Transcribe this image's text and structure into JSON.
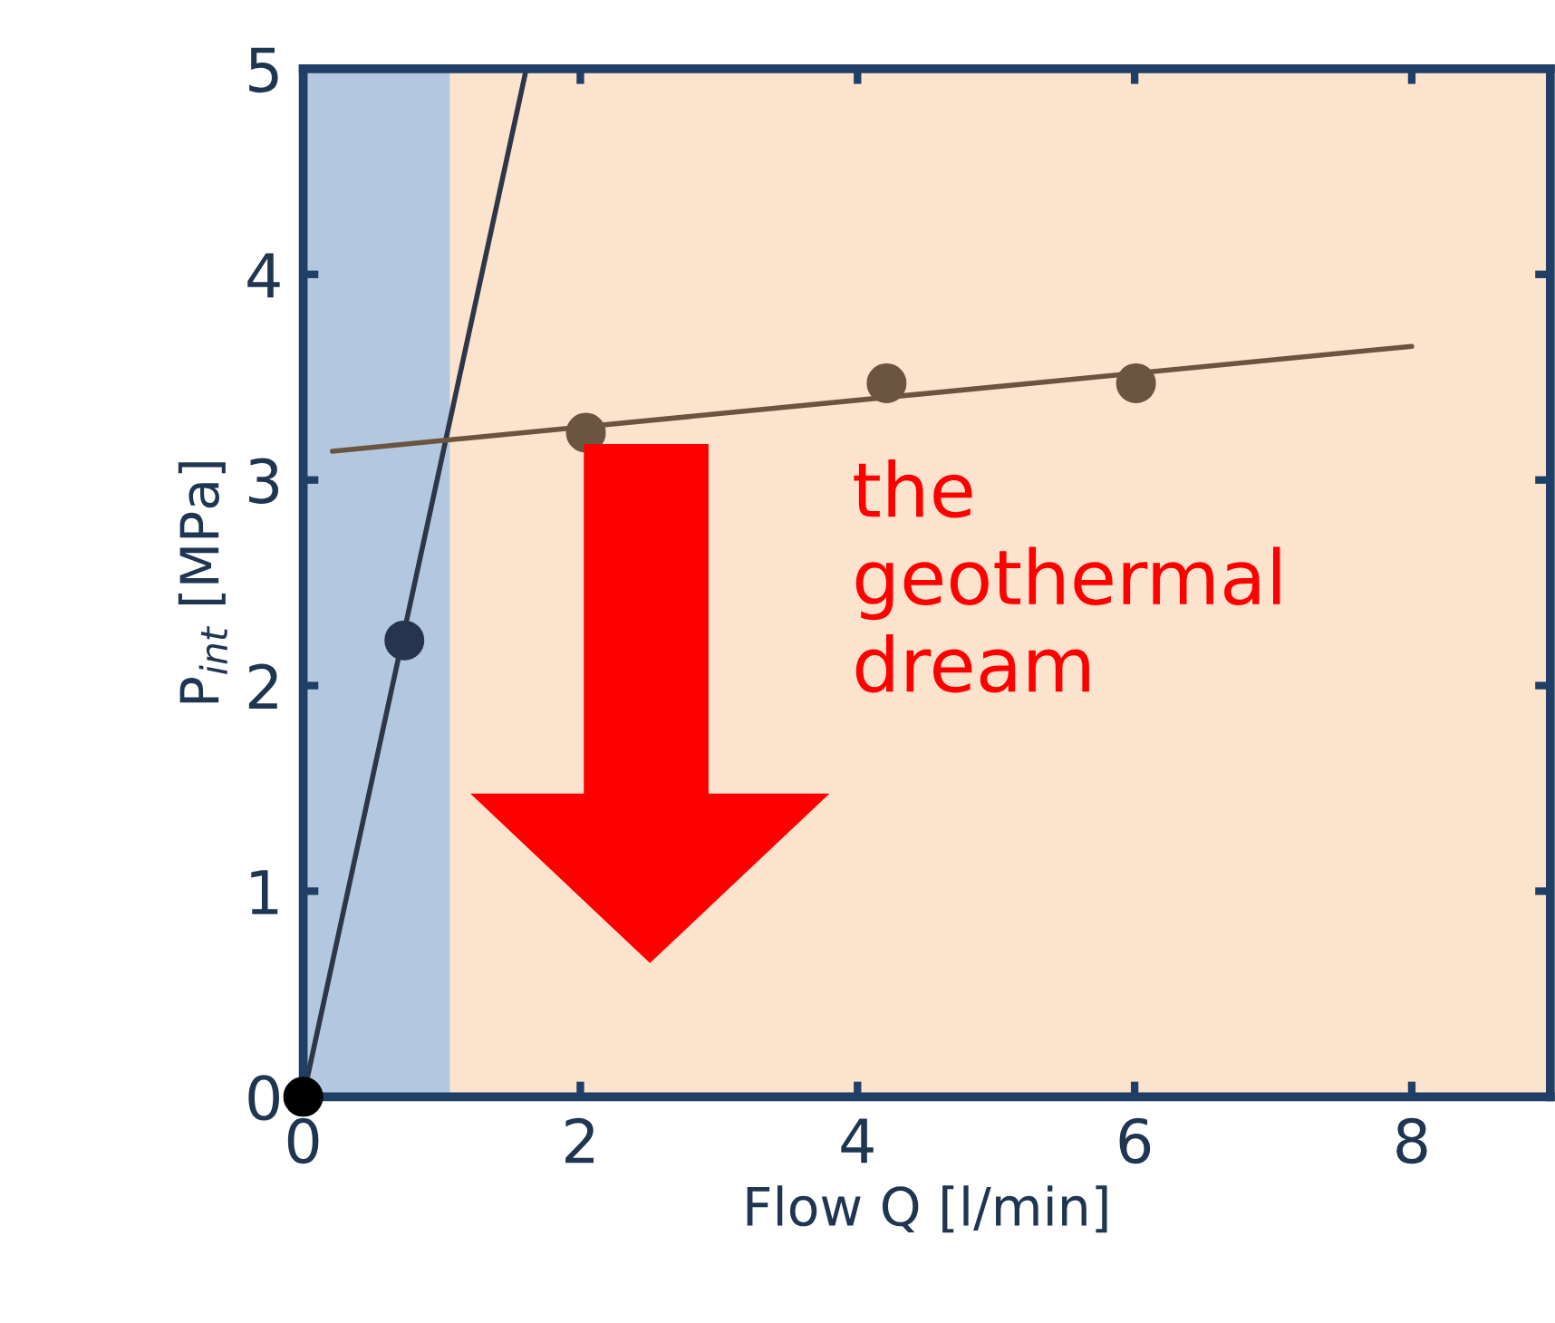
{
  "chart_data": {
    "type": "scatter",
    "xlabel": "Flow Q [l/min]",
    "ylabel": "P$_{int}$ [MPa]",
    "xlim": [
      0,
      9
    ],
    "ylim": [
      0,
      5
    ],
    "xticks": [
      0,
      2,
      4,
      6,
      8
    ],
    "yticks": [
      0,
      1,
      2,
      3,
      4,
      5
    ],
    "grid": false,
    "marker": "circle",
    "bands": [
      {
        "axis": "x",
        "from": 0,
        "to": 1.06,
        "color": "#b3c8e0"
      },
      {
        "axis": "x",
        "from": 1.06,
        "to": 9,
        "color": "#fce3cd"
      }
    ],
    "series": [
      {
        "type": "line",
        "color": "#2e3648",
        "x": [
          0,
          1.61
        ],
        "values": [
          0,
          5
        ],
        "marker": "none"
      },
      {
        "type": "line",
        "color": "#6b5540",
        "x": [
          0.21,
          8.0
        ],
        "values": [
          3.14,
          3.65
        ],
        "marker": "none"
      },
      {
        "color": "#000000",
        "x": [
          0
        ],
        "values": [
          0
        ]
      },
      {
        "color": "#26354d",
        "x": [
          0.73
        ],
        "values": [
          2.22
        ]
      },
      {
        "color": "#6b5540",
        "x": [
          2.04,
          4.21,
          6.01
        ],
        "values": [
          3.23,
          3.47,
          3.47
        ]
      }
    ],
    "annotations": [
      "the\ngeothermal\ndream"
    ]
  }
}
